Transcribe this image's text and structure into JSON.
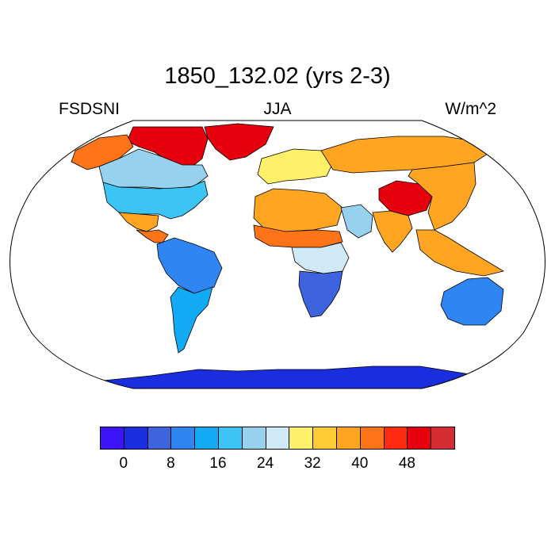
{
  "title": "1850_132.02 (yrs 2-3)",
  "left_label": "FSDSNI",
  "center_label": "JJA",
  "right_label": "W/m^2",
  "colorbar": {
    "colors": [
      "#3d14f5",
      "#1a2ee0",
      "#3d64de",
      "#2f86f2",
      "#12aaf5",
      "#3cc4f5",
      "#96d2ee",
      "#cfe9f6",
      "#fff06a",
      "#ffcb32",
      "#ffa522",
      "#ff7418",
      "#ff2a10",
      "#e6000e",
      "#d42c30"
    ],
    "tick_labels": [
      "0",
      "8",
      "16",
      "24",
      "32",
      "40",
      "48"
    ],
    "tick_values": [
      0,
      8,
      16,
      24,
      32,
      40,
      48
    ],
    "min": -4,
    "step": 4
  },
  "chart_data": {
    "type": "heatmap",
    "title": "1850_132.02 (yrs 2-3)",
    "variable": "FSDSNI",
    "season": "JJA",
    "units": "W/m^2",
    "projection": "Robinson",
    "levels": [
      -4,
      0,
      4,
      8,
      12,
      16,
      20,
      24,
      28,
      32,
      36,
      40,
      44,
      48,
      52
    ],
    "regions": [
      {
        "name": "Antarctica",
        "value": 2
      },
      {
        "name": "Greenland",
        "value": 50
      },
      {
        "name": "Canadian Arctic",
        "value": 48
      },
      {
        "name": "Alaska",
        "value": 40
      },
      {
        "name": "Canada",
        "value": 22
      },
      {
        "name": "United States",
        "value": 16
      },
      {
        "name": "Mexico",
        "value": 38
      },
      {
        "name": "Central America",
        "value": 42
      },
      {
        "name": "Amazon",
        "value": 10
      },
      {
        "name": "Southern South America",
        "value": 14
      },
      {
        "name": "Sahara",
        "value": 36
      },
      {
        "name": "Sahel",
        "value": 40
      },
      {
        "name": "Central Africa",
        "value": 24
      },
      {
        "name": "Southern Africa",
        "value": 6
      },
      {
        "name": "Europe",
        "value": 28
      },
      {
        "name": "Arabia",
        "value": 20
      },
      {
        "name": "Siberia",
        "value": 36
      },
      {
        "name": "Tibetan Plateau",
        "value": 50
      },
      {
        "name": "China",
        "value": 38
      },
      {
        "name": "India",
        "value": 38
      },
      {
        "name": "Southeast Asia",
        "value": 36
      },
      {
        "name": "Australia",
        "value": 8
      }
    ]
  }
}
